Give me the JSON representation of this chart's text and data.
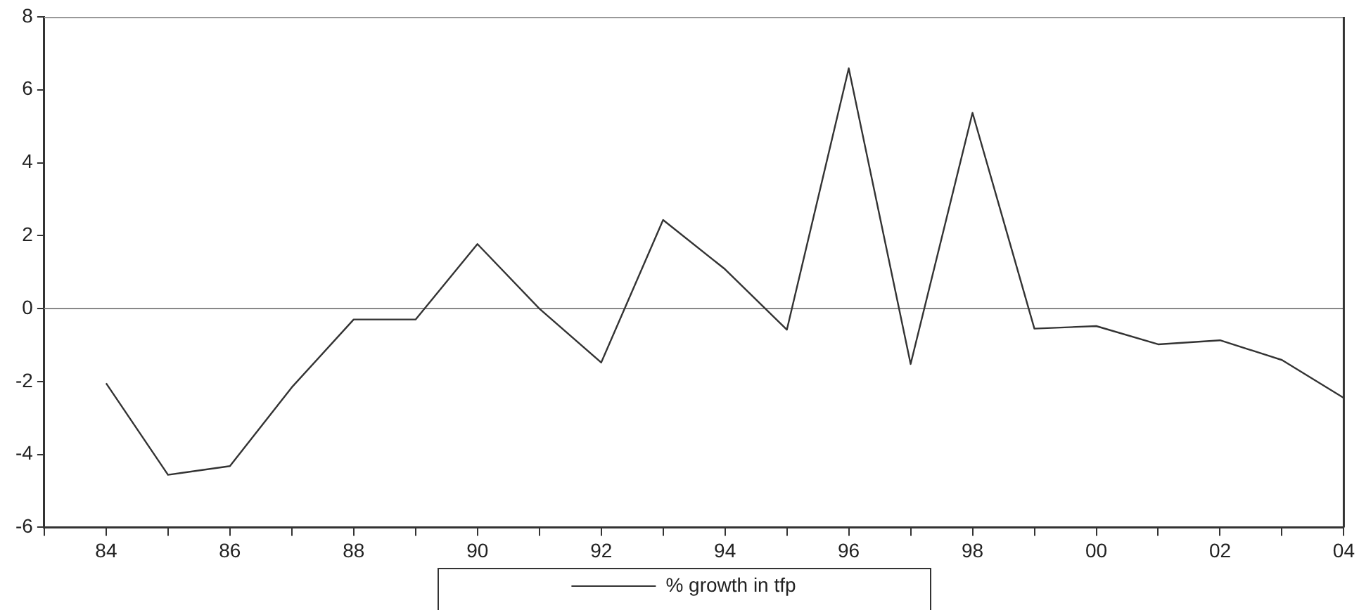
{
  "chart_data": {
    "type": "line",
    "x": [
      1984,
      1985,
      1986,
      1987,
      1988,
      1989,
      1990,
      1991,
      1992,
      1993,
      1994,
      1995,
      1996,
      1997,
      1998,
      1999,
      2000,
      2001,
      2002,
      2003,
      2004
    ],
    "series": [
      {
        "name": "% growth in tfp",
        "color": "#333333",
        "values": [
          -2.05,
          -4.56,
          -4.32,
          -2.16,
          -0.3,
          -0.3,
          1.77,
          0,
          -1.48,
          2.43,
          1.08,
          -0.58,
          6.59,
          -1.52,
          5.37,
          -0.55,
          -0.48,
          -0.98,
          -0.87,
          -1.41,
          -2.45
        ]
      }
    ],
    "xlim": [
      1983,
      2004
    ],
    "xticks": [
      {
        "value": 1983,
        "label": null
      },
      {
        "value": 1984,
        "label": "84"
      },
      {
        "value": 1985,
        "label": null
      },
      {
        "value": 1986,
        "label": "86"
      },
      {
        "value": 1987,
        "label": null
      },
      {
        "value": 1988,
        "label": "88"
      },
      {
        "value": 1989,
        "label": null
      },
      {
        "value": 1990,
        "label": "90"
      },
      {
        "value": 1991,
        "label": null
      },
      {
        "value": 1992,
        "label": "92"
      },
      {
        "value": 1993,
        "label": null
      },
      {
        "value": 1994,
        "label": "94"
      },
      {
        "value": 1995,
        "label": null
      },
      {
        "value": 1996,
        "label": "96"
      },
      {
        "value": 1997,
        "label": null
      },
      {
        "value": 1998,
        "label": "98"
      },
      {
        "value": 1999,
        "label": null
      },
      {
        "value": 2000,
        "label": "00"
      },
      {
        "value": 2001,
        "label": null
      },
      {
        "value": 2002,
        "label": "02"
      },
      {
        "value": 2003,
        "label": null
      },
      {
        "value": 2004,
        "label": "04"
      }
    ],
    "ylim": [
      -6,
      8
    ],
    "yticks": [
      -6,
      -4,
      -2,
      0,
      2,
      4,
      6,
      8
    ],
    "ref_lines": [
      {
        "axis": "y",
        "value": 0,
        "color": "#888888"
      }
    ],
    "grid": false,
    "legend": "bottom",
    "marker": "none",
    "line_style": "solid"
  }
}
